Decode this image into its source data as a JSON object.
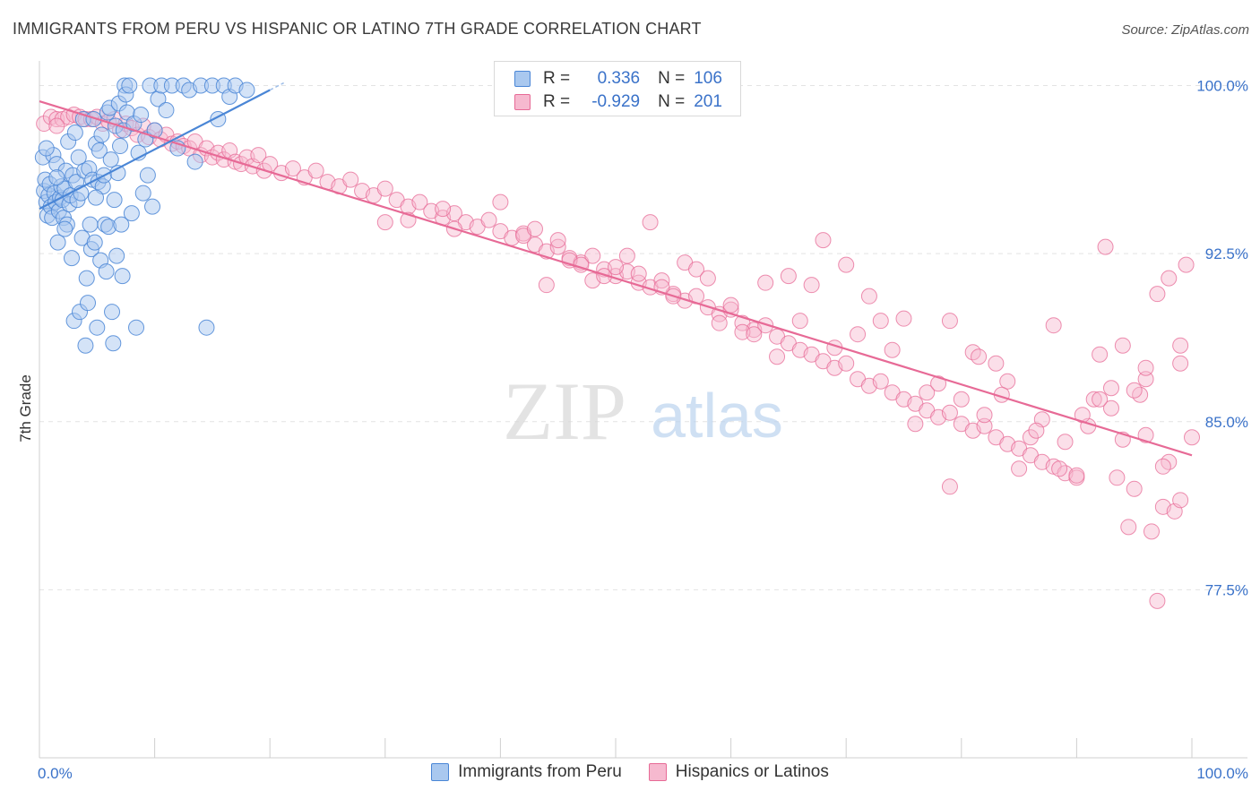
{
  "title": "IMMIGRANTS FROM PERU VS HISPANIC OR LATINO 7TH GRADE CORRELATION CHART",
  "source": "Source: ZipAtlas.com",
  "watermark": {
    "zip": "ZIP",
    "atlas": "atlas"
  },
  "legend": [
    {
      "r_label": "R =",
      "r_value": "0.336",
      "n_label": "N =",
      "n_value": "106"
    },
    {
      "r_label": "R =",
      "r_value": "-0.929",
      "n_label": "N =",
      "n_value": "201"
    }
  ],
  "colors": {
    "blue": "#4a86d6",
    "blue_fill": "#a9c8ef",
    "pink": "#e76a96",
    "pink_fill": "#f6b9cf",
    "axis_label": "#3a72c9"
  },
  "chart_data": {
    "type": "scatter",
    "ylabel": "7th Grade",
    "xlim": [
      0,
      100
    ],
    "ylim": [
      70,
      100.9
    ],
    "x_tick_labels": [
      "0.0%",
      "100.0%"
    ],
    "y_ticks": [
      {
        "value": 100,
        "label": "100.0%"
      },
      {
        "value": 92.5,
        "label": "92.5%"
      },
      {
        "value": 85,
        "label": "85.0%"
      },
      {
        "value": 77.5,
        "label": "77.5%"
      }
    ],
    "grid": "horizontal dashed",
    "series": [
      {
        "name": "Immigrants from Peru",
        "color": "#4a86d6",
        "trendline": {
          "x": [
            0,
            20
          ],
          "y": [
            94.5,
            99.8
          ]
        },
        "points": [
          [
            0.3,
            96.8
          ],
          [
            0.4,
            95.3
          ],
          [
            0.5,
            95.8
          ],
          [
            0.6,
            94.8
          ],
          [
            0.7,
            94.2
          ],
          [
            0.8,
            95.1
          ],
          [
            0.9,
            95.6
          ],
          [
            1.0,
            94.6
          ],
          [
            1.1,
            94.1
          ],
          [
            1.2,
            96.9
          ],
          [
            1.3,
            95.2
          ],
          [
            1.4,
            94.8
          ],
          [
            1.5,
            96.5
          ],
          [
            1.6,
            93.0
          ],
          [
            1.7,
            94.4
          ],
          [
            1.8,
            95.0
          ],
          [
            1.9,
            95.5
          ],
          [
            2.0,
            94.9
          ],
          [
            2.1,
            94.1
          ],
          [
            2.2,
            95.4
          ],
          [
            2.3,
            96.2
          ],
          [
            2.4,
            93.8
          ],
          [
            2.5,
            97.5
          ],
          [
            2.6,
            94.7
          ],
          [
            2.7,
            95.1
          ],
          [
            2.8,
            92.3
          ],
          [
            2.9,
            96.0
          ],
          [
            3.0,
            89.5
          ],
          [
            3.1,
            97.9
          ],
          [
            3.2,
            95.7
          ],
          [
            3.3,
            94.9
          ],
          [
            3.4,
            96.8
          ],
          [
            3.5,
            89.9
          ],
          [
            3.6,
            95.2
          ],
          [
            3.7,
            93.2
          ],
          [
            3.8,
            98.5
          ],
          [
            3.9,
            96.2
          ],
          [
            4.0,
            88.4
          ],
          [
            4.1,
            91.4
          ],
          [
            4.2,
            90.3
          ],
          [
            4.3,
            96.3
          ],
          [
            4.4,
            93.8
          ],
          [
            4.5,
            92.7
          ],
          [
            4.6,
            95.8
          ],
          [
            4.7,
            98.5
          ],
          [
            4.8,
            93.0
          ],
          [
            4.9,
            97.4
          ],
          [
            5.0,
            89.2
          ],
          [
            5.1,
            95.7
          ],
          [
            5.2,
            97.1
          ],
          [
            5.3,
            92.2
          ],
          [
            5.4,
            97.8
          ],
          [
            5.5,
            95.5
          ],
          [
            5.6,
            96.0
          ],
          [
            5.7,
            93.8
          ],
          [
            5.8,
            91.7
          ],
          [
            5.9,
            98.8
          ],
          [
            6.0,
            93.7
          ],
          [
            6.1,
            99.0
          ],
          [
            6.2,
            96.7
          ],
          [
            6.3,
            89.9
          ],
          [
            6.4,
            88.5
          ],
          [
            6.5,
            94.9
          ],
          [
            6.6,
            98.2
          ],
          [
            6.7,
            92.4
          ],
          [
            6.8,
            96.1
          ],
          [
            6.9,
            99.2
          ],
          [
            7.0,
            97.3
          ],
          [
            7.1,
            93.8
          ],
          [
            7.2,
            91.5
          ],
          [
            7.3,
            98.0
          ],
          [
            7.4,
            100.0
          ],
          [
            7.5,
            99.6
          ],
          [
            7.6,
            98.8
          ],
          [
            7.8,
            100.0
          ],
          [
            8.0,
            94.3
          ],
          [
            8.2,
            98.3
          ],
          [
            8.4,
            89.2
          ],
          [
            8.6,
            97.0
          ],
          [
            8.8,
            98.7
          ],
          [
            9.0,
            95.2
          ],
          [
            9.2,
            97.6
          ],
          [
            9.4,
            96.0
          ],
          [
            9.6,
            100.0
          ],
          [
            9.8,
            94.6
          ],
          [
            10.0,
            98.0
          ],
          [
            10.3,
            99.4
          ],
          [
            10.6,
            100.0
          ],
          [
            11.0,
            98.9
          ],
          [
            11.5,
            100.0
          ],
          [
            12.0,
            97.2
          ],
          [
            12.5,
            100.0
          ],
          [
            13.0,
            99.8
          ],
          [
            13.5,
            96.6
          ],
          [
            14.0,
            100.0
          ],
          [
            14.5,
            89.2
          ],
          [
            15.0,
            100.0
          ],
          [
            15.5,
            98.5
          ],
          [
            16.0,
            100.0
          ],
          [
            16.5,
            99.5
          ],
          [
            17.0,
            100.0
          ],
          [
            18.0,
            99.8
          ],
          [
            0.6,
            97.2
          ],
          [
            1.5,
            95.9
          ],
          [
            2.2,
            93.6
          ],
          [
            4.9,
            95.0
          ]
        ]
      },
      {
        "name": "Hispanics or Latinos",
        "color": "#e76a96",
        "trendline": {
          "x": [
            0,
            100
          ],
          "y": [
            99.3,
            83.5
          ]
        },
        "points": [
          [
            0.4,
            98.3
          ],
          [
            1.0,
            98.6
          ],
          [
            1.5,
            98.5
          ],
          [
            2.0,
            98.5
          ],
          [
            2.5,
            98.6
          ],
          [
            3.0,
            98.7
          ],
          [
            3.5,
            98.6
          ],
          [
            4.0,
            98.5
          ],
          [
            4.5,
            98.5
          ],
          [
            5.0,
            98.6
          ],
          [
            5.5,
            98.3
          ],
          [
            6.0,
            98.4
          ],
          [
            6.5,
            98.5
          ],
          [
            7.0,
            98.0
          ],
          [
            7.5,
            98.3
          ],
          [
            8.0,
            98.1
          ],
          [
            8.5,
            97.8
          ],
          [
            9.0,
            98.2
          ],
          [
            9.5,
            97.7
          ],
          [
            10.0,
            98.0
          ],
          [
            10.5,
            97.6
          ],
          [
            11.0,
            97.8
          ],
          [
            11.5,
            97.4
          ],
          [
            12.0,
            97.5
          ],
          [
            12.5,
            97.3
          ],
          [
            13.0,
            97.2
          ],
          [
            13.5,
            97.5
          ],
          [
            14.0,
            96.9
          ],
          [
            14.5,
            97.2
          ],
          [
            15.0,
            96.8
          ],
          [
            15.5,
            97.0
          ],
          [
            16.0,
            96.7
          ],
          [
            16.5,
            97.1
          ],
          [
            17.0,
            96.6
          ],
          [
            17.5,
            96.5
          ],
          [
            18.0,
            96.8
          ],
          [
            18.5,
            96.4
          ],
          [
            19.0,
            96.9
          ],
          [
            19.5,
            96.2
          ],
          [
            20.0,
            96.5
          ],
          [
            21.0,
            96.1
          ],
          [
            22.0,
            96.3
          ],
          [
            23.0,
            95.9
          ],
          [
            24.0,
            96.2
          ],
          [
            25.0,
            95.7
          ],
          [
            26.0,
            95.5
          ],
          [
            27.0,
            95.8
          ],
          [
            28.0,
            95.3
          ],
          [
            29.0,
            95.1
          ],
          [
            30.0,
            95.4
          ],
          [
            31.0,
            94.9
          ],
          [
            32.0,
            94.6
          ],
          [
            33.0,
            94.8
          ],
          [
            34.0,
            94.4
          ],
          [
            35.0,
            94.1
          ],
          [
            36.0,
            94.3
          ],
          [
            37.0,
            93.9
          ],
          [
            38.0,
            93.7
          ],
          [
            39.0,
            94.0
          ],
          [
            40.0,
            93.5
          ],
          [
            41.0,
            93.2
          ],
          [
            42.0,
            93.4
          ],
          [
            43.0,
            92.9
          ],
          [
            44.0,
            92.6
          ],
          [
            45.0,
            92.8
          ],
          [
            46.0,
            92.3
          ],
          [
            47.0,
            92.1
          ],
          [
            48.0,
            92.4
          ],
          [
            49.0,
            91.8
          ],
          [
            50.0,
            91.5
          ],
          [
            51.0,
            91.7
          ],
          [
            52.0,
            91.2
          ],
          [
            53.0,
            91.0
          ],
          [
            54.0,
            91.3
          ],
          [
            55.0,
            90.7
          ],
          [
            56.0,
            90.4
          ],
          [
            57.0,
            90.6
          ],
          [
            58.0,
            90.1
          ],
          [
            59.0,
            89.8
          ],
          [
            60.0,
            90.0
          ],
          [
            61.0,
            89.4
          ],
          [
            62.0,
            89.1
          ],
          [
            63.0,
            89.3
          ],
          [
            64.0,
            88.8
          ],
          [
            65.0,
            88.5
          ],
          [
            66.0,
            88.2
          ],
          [
            67.0,
            88.0
          ],
          [
            68.0,
            87.7
          ],
          [
            69.0,
            87.4
          ],
          [
            70.0,
            87.6
          ],
          [
            71.0,
            86.9
          ],
          [
            72.0,
            86.6
          ],
          [
            73.0,
            86.8
          ],
          [
            74.0,
            86.3
          ],
          [
            75.0,
            86.0
          ],
          [
            76.0,
            85.8
          ],
          [
            77.0,
            85.5
          ],
          [
            78.0,
            85.2
          ],
          [
            79.0,
            85.4
          ],
          [
            80.0,
            84.9
          ],
          [
            81.0,
            84.6
          ],
          [
            82.0,
            84.8
          ],
          [
            83.0,
            84.3
          ],
          [
            84.0,
            84.0
          ],
          [
            85.0,
            83.8
          ],
          [
            86.0,
            83.5
          ],
          [
            87.0,
            83.2
          ],
          [
            88.0,
            83.0
          ],
          [
            89.0,
            82.7
          ],
          [
            90.0,
            82.5
          ],
          [
            30.0,
            93.9
          ],
          [
            32.0,
            94.0
          ],
          [
            35.0,
            94.5
          ],
          [
            36.0,
            93.6
          ],
          [
            40.0,
            94.8
          ],
          [
            42.0,
            93.3
          ],
          [
            43.0,
            93.6
          ],
          [
            44.0,
            91.1
          ],
          [
            45.0,
            93.1
          ],
          [
            46.0,
            92.2
          ],
          [
            47.0,
            92.0
          ],
          [
            48.0,
            91.3
          ],
          [
            49.0,
            91.5
          ],
          [
            50.0,
            91.9
          ],
          [
            51.0,
            92.4
          ],
          [
            52.0,
            91.6
          ],
          [
            53.0,
            93.9
          ],
          [
            54.0,
            91.0
          ],
          [
            55.0,
            90.6
          ],
          [
            56.0,
            92.1
          ],
          [
            57.0,
            91.8
          ],
          [
            58.0,
            91.4
          ],
          [
            59.0,
            89.4
          ],
          [
            60.0,
            90.2
          ],
          [
            61.0,
            89.0
          ],
          [
            62.0,
            88.9
          ],
          [
            63.0,
            91.2
          ],
          [
            64.0,
            87.9
          ],
          [
            65.0,
            91.5
          ],
          [
            66.0,
            89.5
          ],
          [
            67.0,
            91.1
          ],
          [
            68.0,
            93.1
          ],
          [
            69.0,
            88.3
          ],
          [
            70.0,
            92.0
          ],
          [
            71.0,
            88.9
          ],
          [
            72.0,
            90.6
          ],
          [
            73.0,
            89.5
          ],
          [
            74.0,
            88.2
          ],
          [
            75.0,
            89.6
          ],
          [
            76.0,
            84.9
          ],
          [
            77.0,
            86.3
          ],
          [
            78.0,
            86.7
          ],
          [
            79.0,
            89.5
          ],
          [
            80.0,
            86.0
          ],
          [
            81.0,
            88.1
          ],
          [
            82.0,
            85.3
          ],
          [
            83.0,
            87.6
          ],
          [
            84.0,
            86.8
          ],
          [
            85.0,
            82.9
          ],
          [
            86.0,
            84.3
          ],
          [
            87.0,
            85.1
          ],
          [
            88.0,
            89.3
          ],
          [
            89.0,
            84.1
          ],
          [
            90.0,
            82.6
          ],
          [
            91.0,
            84.8
          ],
          [
            92.0,
            88.0
          ],
          [
            93.0,
            86.5
          ],
          [
            94.0,
            84.2
          ],
          [
            95.0,
            82.0
          ],
          [
            96.0,
            86.9
          ],
          [
            97.0,
            90.7
          ],
          [
            98.0,
            83.2
          ],
          [
            99.0,
            88.4
          ],
          [
            100.0,
            84.3
          ],
          [
            79.0,
            82.1
          ],
          [
            81.5,
            87.9
          ],
          [
            83.5,
            86.2
          ],
          [
            86.5,
            84.6
          ],
          [
            88.5,
            82.9
          ],
          [
            91.5,
            86.0
          ],
          [
            92.5,
            92.8
          ],
          [
            93.5,
            82.5
          ],
          [
            94.5,
            80.3
          ],
          [
            95.5,
            86.2
          ],
          [
            96.5,
            80.1
          ],
          [
            97.5,
            81.2
          ],
          [
            98.5,
            81.0
          ],
          [
            99.0,
            81.5
          ],
          [
            97.0,
            77.0
          ],
          [
            96.0,
            84.4
          ],
          [
            93.0,
            85.6
          ],
          [
            95.0,
            86.4
          ],
          [
            97.5,
            83.0
          ],
          [
            99.0,
            87.6
          ],
          [
            98.0,
            91.4
          ],
          [
            99.5,
            92.0
          ],
          [
            94.0,
            88.4
          ],
          [
            96.0,
            87.4
          ],
          [
            92.0,
            86.0
          ],
          [
            90.5,
            85.3
          ],
          [
            1.5,
            98.2
          ]
        ]
      }
    ]
  }
}
